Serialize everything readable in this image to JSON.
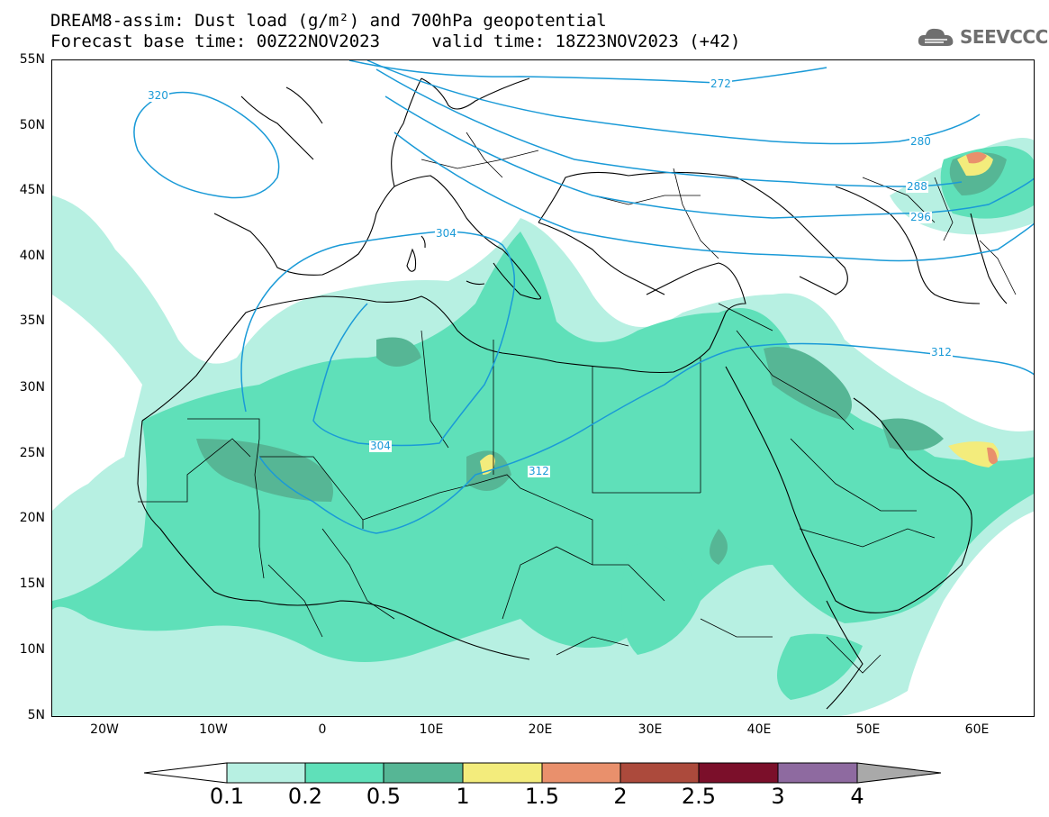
{
  "title": {
    "line1": "DREAM8-assim: Dust load (g/m²) and 700hPa geopotential",
    "line2": "Forecast base time: 00Z22NOV2023     valid time: 18Z23NOV2023 (+42)"
  },
  "logo": {
    "text": "SEEVCCC",
    "icon": "cloud-logo-icon"
  },
  "map": {
    "lat_labels": [
      "55N",
      "50N",
      "45N",
      "40N",
      "35N",
      "30N",
      "25N",
      "20N",
      "15N",
      "10N",
      "5N"
    ],
    "lon_labels": [
      "20W",
      "10W",
      "0",
      "10E",
      "20E",
      "30E",
      "40E",
      "50E",
      "60E"
    ],
    "extent": {
      "lon_min": -25,
      "lon_max": 65,
      "lat_min": 5,
      "lat_max": 55
    },
    "contour_labels": [
      "320",
      "304",
      "272",
      "280",
      "288",
      "296",
      "304",
      "312",
      "312"
    ]
  },
  "colorbar": {
    "levels": [
      "0.1",
      "0.2",
      "0.5",
      "1",
      "1.5",
      "2",
      "2.5",
      "3",
      "4"
    ],
    "colors": [
      "#b7f0e2",
      "#5fe0b9",
      "#56b695",
      "#f3ec7c",
      "#e9906c",
      "#ac4a3c",
      "#7b0f2a",
      "#8e6aa0",
      "#a9a9a9"
    ]
  },
  "colors": {
    "contour": "#1a9ad7",
    "coast": "#000000"
  }
}
